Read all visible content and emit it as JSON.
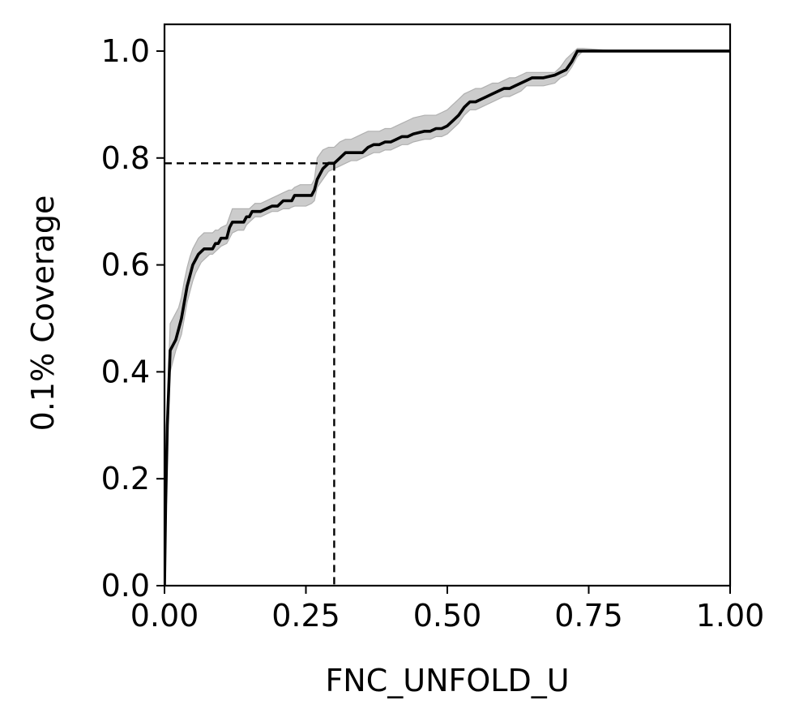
{
  "chart_data": {
    "type": "line",
    "title": "",
    "xlabel": "FNC_UNFOLD_U",
    "ylabel": "0.1% Coverage",
    "xlim": [
      0.0,
      1.0
    ],
    "ylim": [
      0.0,
      1.05
    ],
    "xticks": [
      0.0,
      0.25,
      0.5,
      0.75,
      1.0
    ],
    "xtick_labels": [
      "0.00",
      "0.25",
      "0.50",
      "0.75",
      "1.00"
    ],
    "yticks": [
      0.0,
      0.2,
      0.4,
      0.6,
      0.8,
      1.0
    ],
    "ytick_labels": [
      "0.0",
      "0.2",
      "0.4",
      "0.6",
      "0.8",
      "1.0"
    ],
    "grid": false,
    "legend": "none",
    "series": [
      {
        "line_color": "#000000",
        "band_color": "#cccccc",
        "x": [
          0.0,
          0.002,
          0.005,
          0.01,
          0.015,
          0.02,
          0.025,
          0.03,
          0.035,
          0.04,
          0.045,
          0.05,
          0.055,
          0.06,
          0.065,
          0.07,
          0.075,
          0.08,
          0.085,
          0.09,
          0.095,
          0.1,
          0.11,
          0.115,
          0.12,
          0.13,
          0.14,
          0.145,
          0.15,
          0.155,
          0.16,
          0.17,
          0.18,
          0.19,
          0.2,
          0.21,
          0.22,
          0.225,
          0.23,
          0.24,
          0.25,
          0.26,
          0.265,
          0.27,
          0.28,
          0.29,
          0.3,
          0.31,
          0.32,
          0.33,
          0.34,
          0.35,
          0.36,
          0.37,
          0.38,
          0.39,
          0.4,
          0.41,
          0.42,
          0.43,
          0.44,
          0.46,
          0.47,
          0.48,
          0.49,
          0.5,
          0.51,
          0.52,
          0.53,
          0.54,
          0.55,
          0.56,
          0.57,
          0.58,
          0.59,
          0.6,
          0.61,
          0.62,
          0.63,
          0.64,
          0.65,
          0.67,
          0.69,
          0.7,
          0.71,
          0.72,
          0.73,
          0.74,
          0.8,
          1.0
        ],
        "y": [
          0.0,
          0.15,
          0.3,
          0.44,
          0.45,
          0.46,
          0.48,
          0.5,
          0.53,
          0.56,
          0.58,
          0.6,
          0.61,
          0.62,
          0.625,
          0.63,
          0.63,
          0.63,
          0.63,
          0.64,
          0.64,
          0.65,
          0.65,
          0.67,
          0.68,
          0.68,
          0.68,
          0.69,
          0.69,
          0.7,
          0.7,
          0.7,
          0.705,
          0.71,
          0.71,
          0.72,
          0.72,
          0.72,
          0.73,
          0.73,
          0.73,
          0.73,
          0.74,
          0.76,
          0.78,
          0.79,
          0.79,
          0.8,
          0.81,
          0.81,
          0.81,
          0.81,
          0.82,
          0.825,
          0.825,
          0.83,
          0.83,
          0.835,
          0.84,
          0.84,
          0.845,
          0.85,
          0.85,
          0.855,
          0.855,
          0.86,
          0.87,
          0.88,
          0.895,
          0.905,
          0.905,
          0.91,
          0.915,
          0.92,
          0.925,
          0.93,
          0.93,
          0.935,
          0.94,
          0.945,
          0.95,
          0.95,
          0.955,
          0.96,
          0.965,
          0.98,
          1.0,
          1.0,
          1.0,
          1.0
        ],
        "lower": [
          0.0,
          0.14,
          0.28,
          0.4,
          0.42,
          0.44,
          0.455,
          0.47,
          0.5,
          0.53,
          0.55,
          0.57,
          0.585,
          0.595,
          0.605,
          0.61,
          0.615,
          0.62,
          0.62,
          0.625,
          0.63,
          0.635,
          0.64,
          0.65,
          0.66,
          0.665,
          0.665,
          0.675,
          0.68,
          0.685,
          0.69,
          0.69,
          0.695,
          0.7,
          0.7,
          0.705,
          0.705,
          0.708,
          0.71,
          0.71,
          0.71,
          0.715,
          0.72,
          0.745,
          0.76,
          0.775,
          0.78,
          0.785,
          0.79,
          0.795,
          0.795,
          0.8,
          0.805,
          0.81,
          0.81,
          0.815,
          0.815,
          0.82,
          0.825,
          0.825,
          0.83,
          0.835,
          0.835,
          0.84,
          0.84,
          0.845,
          0.855,
          0.865,
          0.88,
          0.89,
          0.89,
          0.895,
          0.9,
          0.905,
          0.91,
          0.915,
          0.915,
          0.92,
          0.925,
          0.935,
          0.935,
          0.935,
          0.94,
          0.95,
          0.955,
          0.97,
          0.99,
          1.0,
          1.0,
          1.0
        ],
        "upper": [
          0.0,
          0.16,
          0.33,
          0.49,
          0.5,
          0.51,
          0.52,
          0.54,
          0.57,
          0.595,
          0.615,
          0.63,
          0.64,
          0.65,
          0.655,
          0.66,
          0.66,
          0.66,
          0.66,
          0.665,
          0.665,
          0.67,
          0.675,
          0.69,
          0.705,
          0.705,
          0.705,
          0.705,
          0.705,
          0.71,
          0.715,
          0.715,
          0.72,
          0.725,
          0.73,
          0.735,
          0.74,
          0.74,
          0.745,
          0.75,
          0.75,
          0.75,
          0.76,
          0.8,
          0.815,
          0.82,
          0.82,
          0.83,
          0.835,
          0.835,
          0.84,
          0.845,
          0.85,
          0.85,
          0.85,
          0.855,
          0.855,
          0.86,
          0.865,
          0.87,
          0.875,
          0.88,
          0.88,
          0.88,
          0.885,
          0.89,
          0.9,
          0.91,
          0.92,
          0.925,
          0.93,
          0.93,
          0.935,
          0.94,
          0.94,
          0.945,
          0.95,
          0.95,
          0.955,
          0.96,
          0.96,
          0.96,
          0.96,
          0.97,
          0.985,
          0.995,
          1.005,
          1.005,
          1.0,
          1.0
        ]
      }
    ],
    "reference_lines": [
      {
        "style": "dashed",
        "color": "#000000",
        "x": 0.3,
        "y": 0.79
      }
    ]
  }
}
